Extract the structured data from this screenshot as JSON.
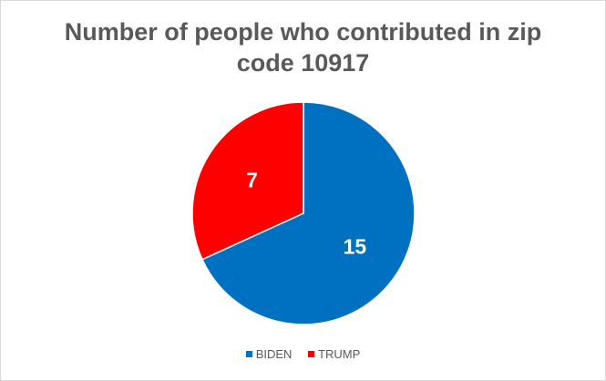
{
  "chart_data": {
    "type": "pie",
    "title": [
      "Number of people who contributed in zip",
      "code 10917"
    ],
    "slices": [
      {
        "name": "BIDEN",
        "value": 15,
        "color": "#0070c0"
      },
      {
        "name": "TRUMP",
        "value": 7,
        "color": "#ff0000"
      }
    ],
    "data_labels": true,
    "legend_position": "bottom"
  }
}
